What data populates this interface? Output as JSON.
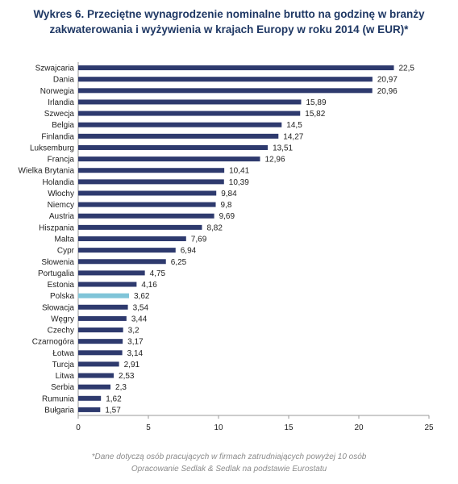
{
  "title_lines": [
    "Wykres 6. Przeciętne wynagrodzenie nominalne brutto na godzinę w branży",
    "zakwaterowania i wyżywienia w krajach Europy w roku 2014 (w EUR)*"
  ],
  "footnotes": [
    "*Dane dotyczą osób pracujących w firmach zatrudniających  powyżej 10 osób",
    "Opracowanie Sedlak & Sedlak na podstawie Eurostatu"
  ],
  "colors": {
    "bar": "#2e3a6e",
    "highlight": "#7fc4d8",
    "title": "#1f3864"
  },
  "chart_data": {
    "type": "bar",
    "orientation": "horizontal",
    "title": "Wykres 6. Przeciętne wynagrodzenie nominalne brutto na godzinę w branży zakwaterowania i wyżywienia w krajach Europy w roku 2014 (w EUR)*",
    "xlabel": "",
    "ylabel": "",
    "xlim": [
      0,
      25
    ],
    "xticks": [
      0,
      5,
      10,
      15,
      20,
      25
    ],
    "grid": false,
    "highlight_category": "Polska",
    "categories": [
      "Szwajcaria",
      "Dania",
      "Norwegia",
      "Irlandia",
      "Szwecja",
      "Belgia",
      "Finlandia",
      "Luksemburg",
      "Francja",
      "Wielka Brytania",
      "Holandia",
      "Włochy",
      "Niemcy",
      "Austria",
      "Hiszpania",
      "Malta",
      "Cypr",
      "Słowenia",
      "Portugalia",
      "Estonia",
      "Polska",
      "Słowacja",
      "Węgry",
      "Czechy",
      "Czarnogóra",
      "Łotwa",
      "Turcja",
      "Litwa",
      "Serbia",
      "Rumunia",
      "Bułgaria"
    ],
    "values": [
      22.5,
      20.97,
      20.96,
      15.89,
      15.82,
      14.5,
      14.27,
      13.51,
      12.96,
      10.41,
      10.39,
      9.84,
      9.8,
      9.69,
      8.82,
      7.69,
      6.94,
      6.25,
      4.75,
      4.16,
      3.62,
      3.54,
      3.44,
      3.2,
      3.17,
      3.14,
      2.91,
      2.53,
      2.3,
      1.62,
      1.57
    ],
    "value_labels": [
      "22,5",
      "20,97",
      "20,96",
      "15,89",
      "15,82",
      "14,5",
      "14,27",
      "13,51",
      "12,96",
      "10,41",
      "10,39",
      "9,84",
      "9,8",
      "9,69",
      "8,82",
      "7,69",
      "6,94",
      "6,25",
      "4,75",
      "4,16",
      "3,62",
      "3,54",
      "3,44",
      "3,2",
      "3,17",
      "3,14",
      "2,91",
      "2,53",
      "2,3",
      "1,62",
      "1,57"
    ]
  }
}
